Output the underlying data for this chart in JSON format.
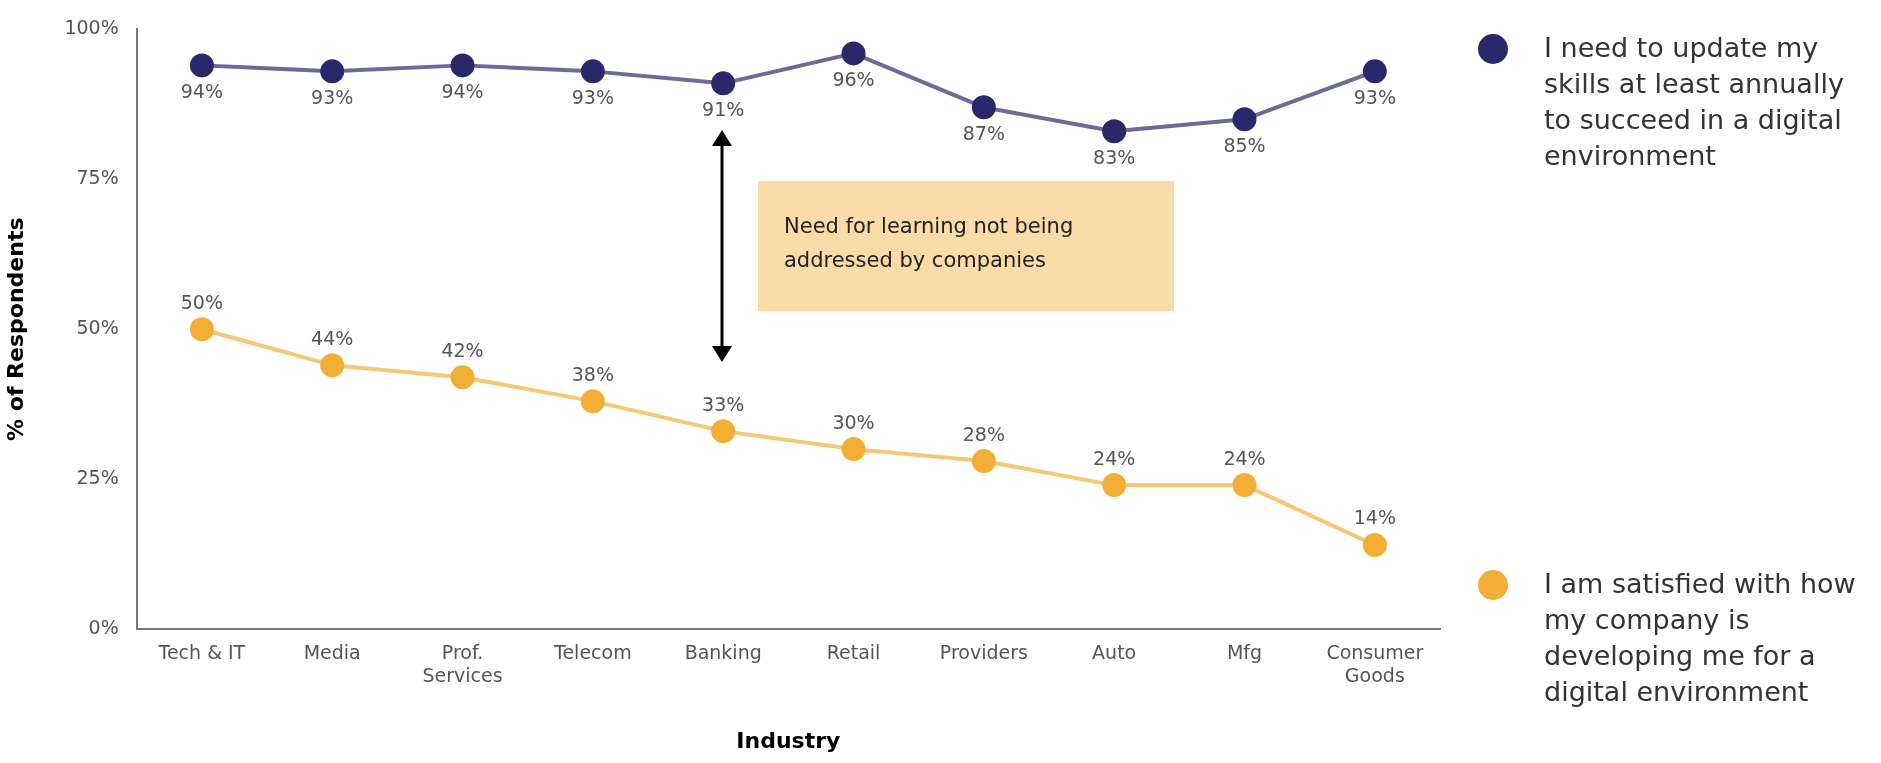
{
  "chart_data": {
    "type": "line",
    "xlabel": "Industry",
    "ylabel": "% of Respondents",
    "categories": [
      "Tech & IT",
      "Media",
      "Prof. Services",
      "Telecom",
      "Banking",
      "Retail",
      "Providers",
      "Auto",
      "Mfg",
      "Consumer Goods"
    ],
    "series": [
      {
        "name": "I need to update my skills at least annually to succeed in a digital environment",
        "color": "#29286b",
        "values": [
          94,
          93,
          94,
          93,
          91,
          96,
          87,
          83,
          85,
          93
        ],
        "value_labels": [
          "94%",
          "93%",
          "94%",
          "93%",
          "91%",
          "96%",
          "87%",
          "83%",
          "85%",
          "93%"
        ]
      },
      {
        "name": "I am satisfied with how my company is developing me for a digital environment",
        "color": "#f2ae35",
        "values": [
          50,
          44,
          42,
          38,
          33,
          30,
          28,
          24,
          24,
          14
        ],
        "value_labels": [
          "50%",
          "44%",
          "42%",
          "38%",
          "33%",
          "30%",
          "28%",
          "24%",
          "24%",
          "14%"
        ]
      }
    ],
    "ylim": [
      0,
      100
    ],
    "yticks": [
      {
        "value": 0,
        "label": "0%"
      },
      {
        "value": 25,
        "label": "25%"
      },
      {
        "value": 50,
        "label": "50%"
      },
      {
        "value": 75,
        "label": "75%"
      },
      {
        "value": 100,
        "label": "100%"
      }
    ],
    "grid": false,
    "legend": "right",
    "marker": "circle",
    "line_style": "solid",
    "annotations": [
      "Need for learning not being addressed by companies"
    ]
  }
}
